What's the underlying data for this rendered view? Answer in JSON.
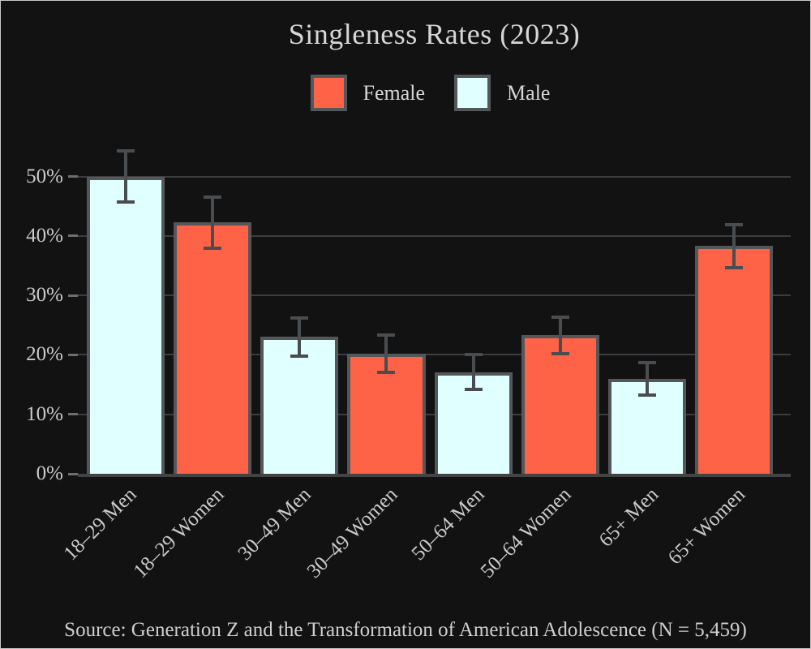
{
  "frame": {
    "background": "#121212",
    "border_color": "#c9c9c9"
  },
  "chart_data": {
    "type": "bar",
    "title": "Singleness Rates (2023)",
    "categories": [
      "18–29 Men",
      "18–29 Women",
      "30–49 Men",
      "30–49 Women",
      "50–64 Men",
      "50–64 Women",
      "65+ Men",
      "65+ Women"
    ],
    "series_membership": [
      "Male",
      "Female",
      "Male",
      "Female",
      "Male",
      "Female",
      "Male",
      "Female"
    ],
    "values": [
      50,
      42.3,
      23,
      20.2,
      17.1,
      23.3,
      16,
      38.3
    ],
    "error_bars": [
      4.3,
      4.3,
      3.2,
      3.1,
      2.9,
      3.1,
      2.7,
      3.6
    ],
    "legend": [
      {
        "label": "Female",
        "color": "#ff6347"
      },
      {
        "label": "Male",
        "color": "#e0ffff"
      }
    ],
    "legend_position": "top-center",
    "xlabel": "",
    "ylabel": "",
    "yticks": [
      0,
      10,
      20,
      30,
      40,
      50
    ],
    "ytick_labels": [
      "0%",
      "10%",
      "20%",
      "30%",
      "40%",
      "50%"
    ],
    "ylim": [
      0,
      55
    ],
    "grid": true,
    "styles": {
      "bar_edge_color": "#54575a",
      "error_bar_color": "#4a4d4f",
      "gridline_color": "#3d3d40",
      "axis_line_color": "#434343",
      "tick_color": "#6e6e6e",
      "tick_label_color": "#cbcbcb",
      "title_color": "#d6d6d6"
    }
  },
  "footer": {
    "source_label": "Source: Generation Z and the Transformation of American Adolescence (N = 5,459)"
  }
}
